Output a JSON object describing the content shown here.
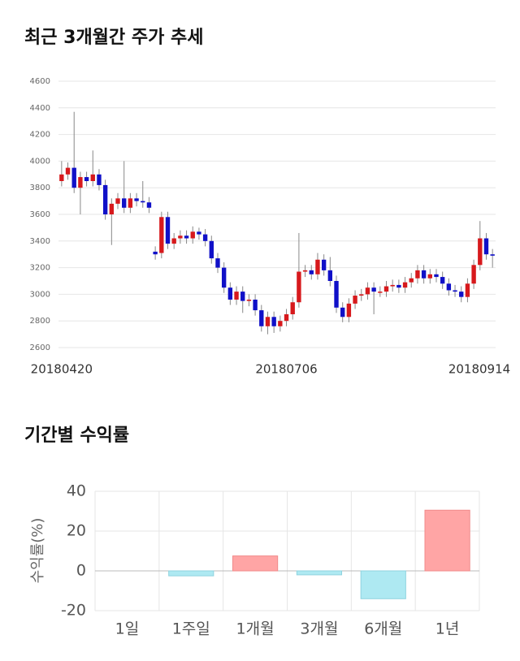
{
  "chart_data": [
    {
      "type": "candlestick",
      "title": "최근 3개월간 주가 추세",
      "categories": [
        "20180420",
        null,
        null,
        null,
        null,
        null,
        null,
        null,
        null,
        null,
        null,
        null,
        null,
        null,
        null,
        null,
        null,
        null,
        null,
        null,
        null,
        null,
        null,
        null,
        null,
        null,
        null,
        null,
        null,
        null,
        null,
        null,
        null,
        null,
        null,
        null,
        "20180706",
        null,
        null,
        null,
        null,
        null,
        null,
        null,
        null,
        null,
        null,
        null,
        null,
        null,
        null,
        null,
        null,
        null,
        null,
        null,
        null,
        null,
        null,
        null,
        null,
        null,
        null,
        null,
        null,
        null,
        null,
        null,
        null,
        "20180914"
      ],
      "open": [
        3850,
        3900,
        3950,
        3800,
        3880,
        3850,
        3900,
        3820,
        3600,
        3680,
        3720,
        3650,
        3720,
        3700,
        3690,
        3320,
        3310,
        3580,
        3380,
        3420,
        3440,
        3420,
        3470,
        3450,
        3400,
        3270,
        3200,
        3050,
        2960,
        3020,
        2950,
        2960,
        2880,
        2760,
        2830,
        2760,
        2800,
        2850,
        2940,
        3170,
        3180,
        3150,
        3260,
        3180,
        3100,
        2900,
        2830,
        2930,
        2990,
        3000,
        3050,
        3020,
        3020,
        3060,
        3070,
        3050,
        3090,
        3120,
        3180,
        3120,
        3150,
        3130,
        3080,
        3030,
        3020,
        2980,
        3080,
        3220,
        3420,
        3300
      ],
      "high": [
        4000,
        3990,
        4370,
        3920,
        3920,
        4080,
        3940,
        3860,
        3720,
        3760,
        4000,
        3760,
        3760,
        3850,
        3730,
        3360,
        3620,
        3620,
        3460,
        3480,
        3480,
        3510,
        3500,
        3490,
        3440,
        3310,
        3240,
        3090,
        3060,
        3060,
        3000,
        3000,
        2920,
        2870,
        2870,
        2840,
        2890,
        2980,
        3460,
        3220,
        3220,
        3310,
        3300,
        3280,
        3140,
        2940,
        2970,
        3030,
        3040,
        3090,
        3090,
        3060,
        3100,
        3110,
        3110,
        3130,
        3160,
        3220,
        3220,
        3190,
        3190,
        3170,
        3120,
        3070,
        3060,
        3120,
        3260,
        3550,
        3460,
        3340
      ],
      "low": [
        3810,
        3860,
        3760,
        3600,
        3810,
        3810,
        3780,
        3560,
        3370,
        3640,
        3610,
        3610,
        3660,
        3650,
        3610,
        3260,
        3270,
        3340,
        3340,
        3380,
        3380,
        3380,
        3410,
        3360,
        3230,
        3160,
        3010,
        2920,
        2920,
        2860,
        2910,
        2840,
        2720,
        2700,
        2710,
        2720,
        2760,
        2810,
        2900,
        3130,
        3110,
        3110,
        3140,
        3060,
        2860,
        2790,
        2790,
        2890,
        2950,
        2960,
        2850,
        2980,
        2980,
        3020,
        3010,
        3010,
        3050,
        3080,
        3080,
        3080,
        3090,
        3040,
        2990,
        2980,
        2940,
        2940,
        3040,
        3180,
        3260,
        3200
      ],
      "close": [
        3900,
        3950,
        3800,
        3880,
        3850,
        3900,
        3820,
        3600,
        3680,
        3720,
        3650,
        3720,
        3700,
        3690,
        3650,
        3300,
        3580,
        3380,
        3420,
        3440,
        3420,
        3470,
        3450,
        3400,
        3270,
        3200,
        3050,
        2960,
        3020,
        2950,
        2960,
        2880,
        2760,
        2830,
        2760,
        2800,
        2850,
        2940,
        3170,
        3180,
        3150,
        3260,
        3180,
        3100,
        2900,
        2830,
        2930,
        2990,
        3000,
        3050,
        3020,
        3020,
        3060,
        3070,
        3050,
        3090,
        3120,
        3180,
        3120,
        3150,
        3130,
        3080,
        3030,
        3020,
        2980,
        3080,
        3220,
        3420,
        3300,
        3290
      ],
      "up_color": "#d7191c",
      "down_color": "#1010c8",
      "ylim": [
        2600,
        4600
      ],
      "yticks": [
        2600,
        2800,
        3000,
        3200,
        3400,
        3600,
        3800,
        4000,
        4200,
        4400,
        4600
      ],
      "grid": true
    },
    {
      "type": "bar",
      "title": "기간별 수익률",
      "y_label": "수익률(%)",
      "categories": [
        "1일",
        "1주일",
        "1개월",
        "3개월",
        "6개월",
        "1년"
      ],
      "values": [
        0,
        -2.5,
        7.5,
        -2,
        -14,
        30.5
      ],
      "positive_color": "#ffa5a5",
      "negative_color": "#aee9f2",
      "ylim": [
        -20,
        40
      ],
      "yticks": [
        -20,
        0,
        20,
        40
      ],
      "grid": true
    }
  ]
}
